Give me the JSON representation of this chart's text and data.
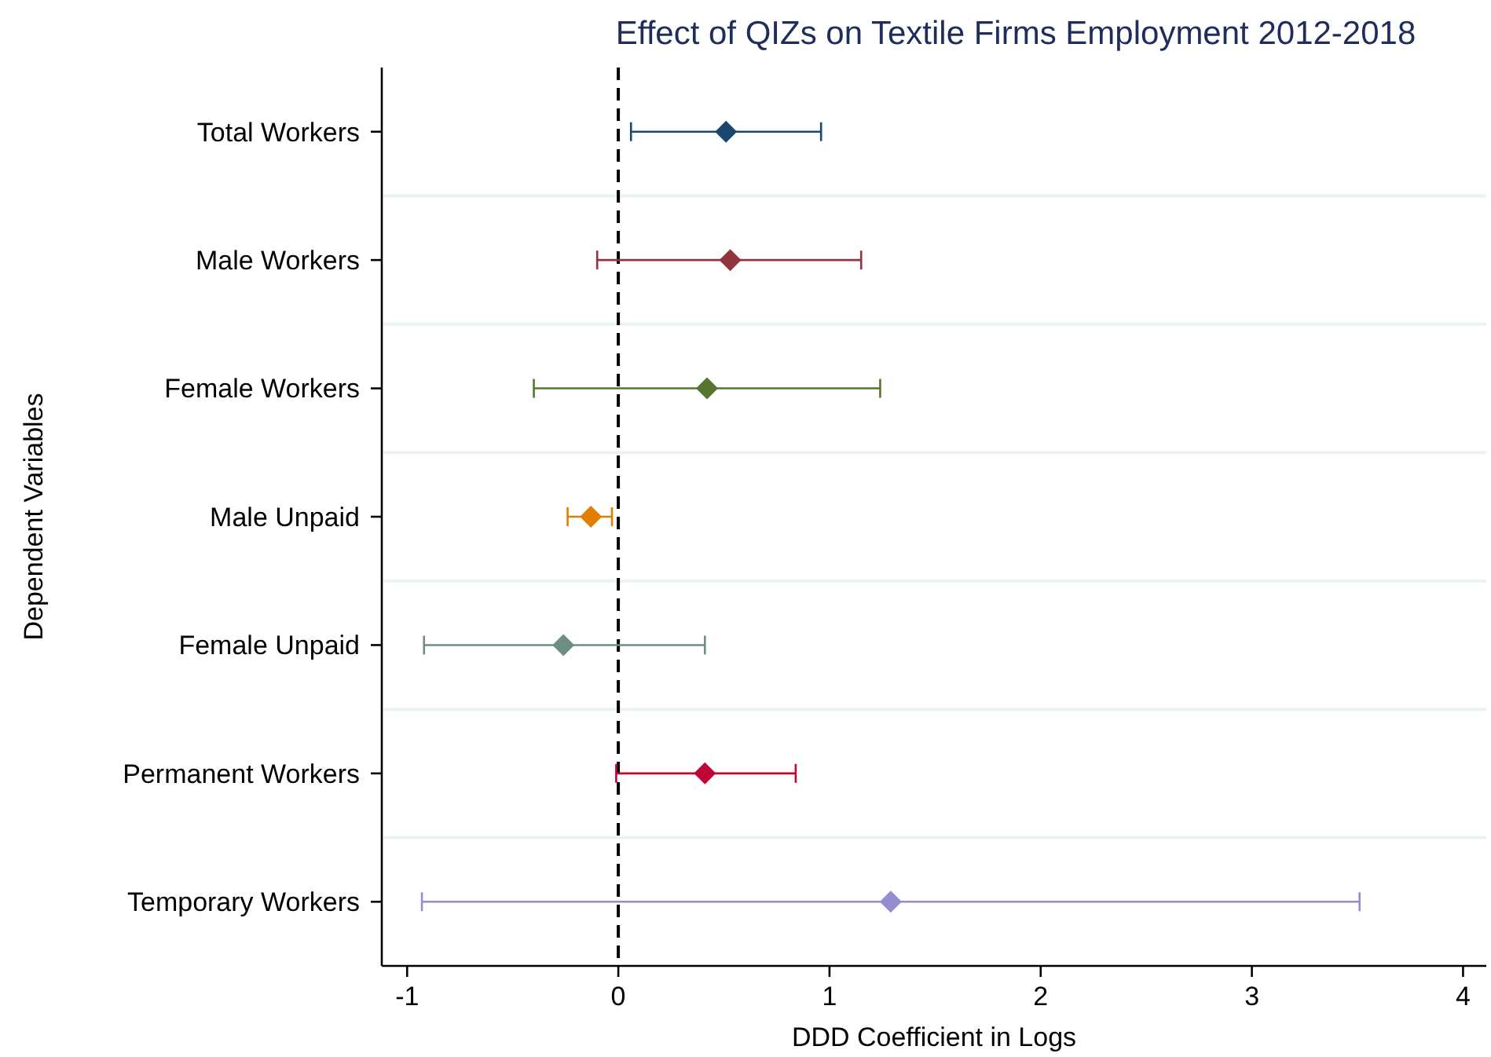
{
  "chart_data": {
    "type": "scatter",
    "orientation": "horizontal",
    "title": "Effect of QIZs on Textile Firms Employment 2012-2018",
    "xlabel": "DDD Coefficient in Logs",
    "ylabel": "Dependent Variables",
    "categories": [
      "Total Workers",
      "Male Workers",
      "Female Workers",
      "Male Unpaid",
      "Female Unpaid",
      "Permanent Workers",
      "Temporary Workers"
    ],
    "values": [
      0.51,
      0.53,
      0.42,
      -0.13,
      -0.26,
      0.41,
      1.29
    ],
    "errors": [
      [
        0.06,
        0.96
      ],
      [
        -0.1,
        1.15
      ],
      [
        -0.4,
        1.24
      ],
      [
        -0.24,
        -0.03
      ],
      [
        -0.92,
        0.41
      ],
      [
        -0.01,
        0.84
      ],
      [
        -0.93,
        3.51
      ]
    ],
    "colors": [
      "#1a476f",
      "#90353b",
      "#55752f",
      "#e37e00",
      "#6e8e84",
      "#c10534",
      "#938dd2"
    ],
    "xlim": [
      -1.12,
      4.11
    ],
    "xticks": [
      -1,
      0,
      1,
      2,
      3,
      4
    ],
    "ref_lines": [
      {
        "axis": "x",
        "value": 0,
        "color": "#000000",
        "line_style": "dashed"
      }
    ],
    "grid": "y",
    "marker": "diamond"
  }
}
